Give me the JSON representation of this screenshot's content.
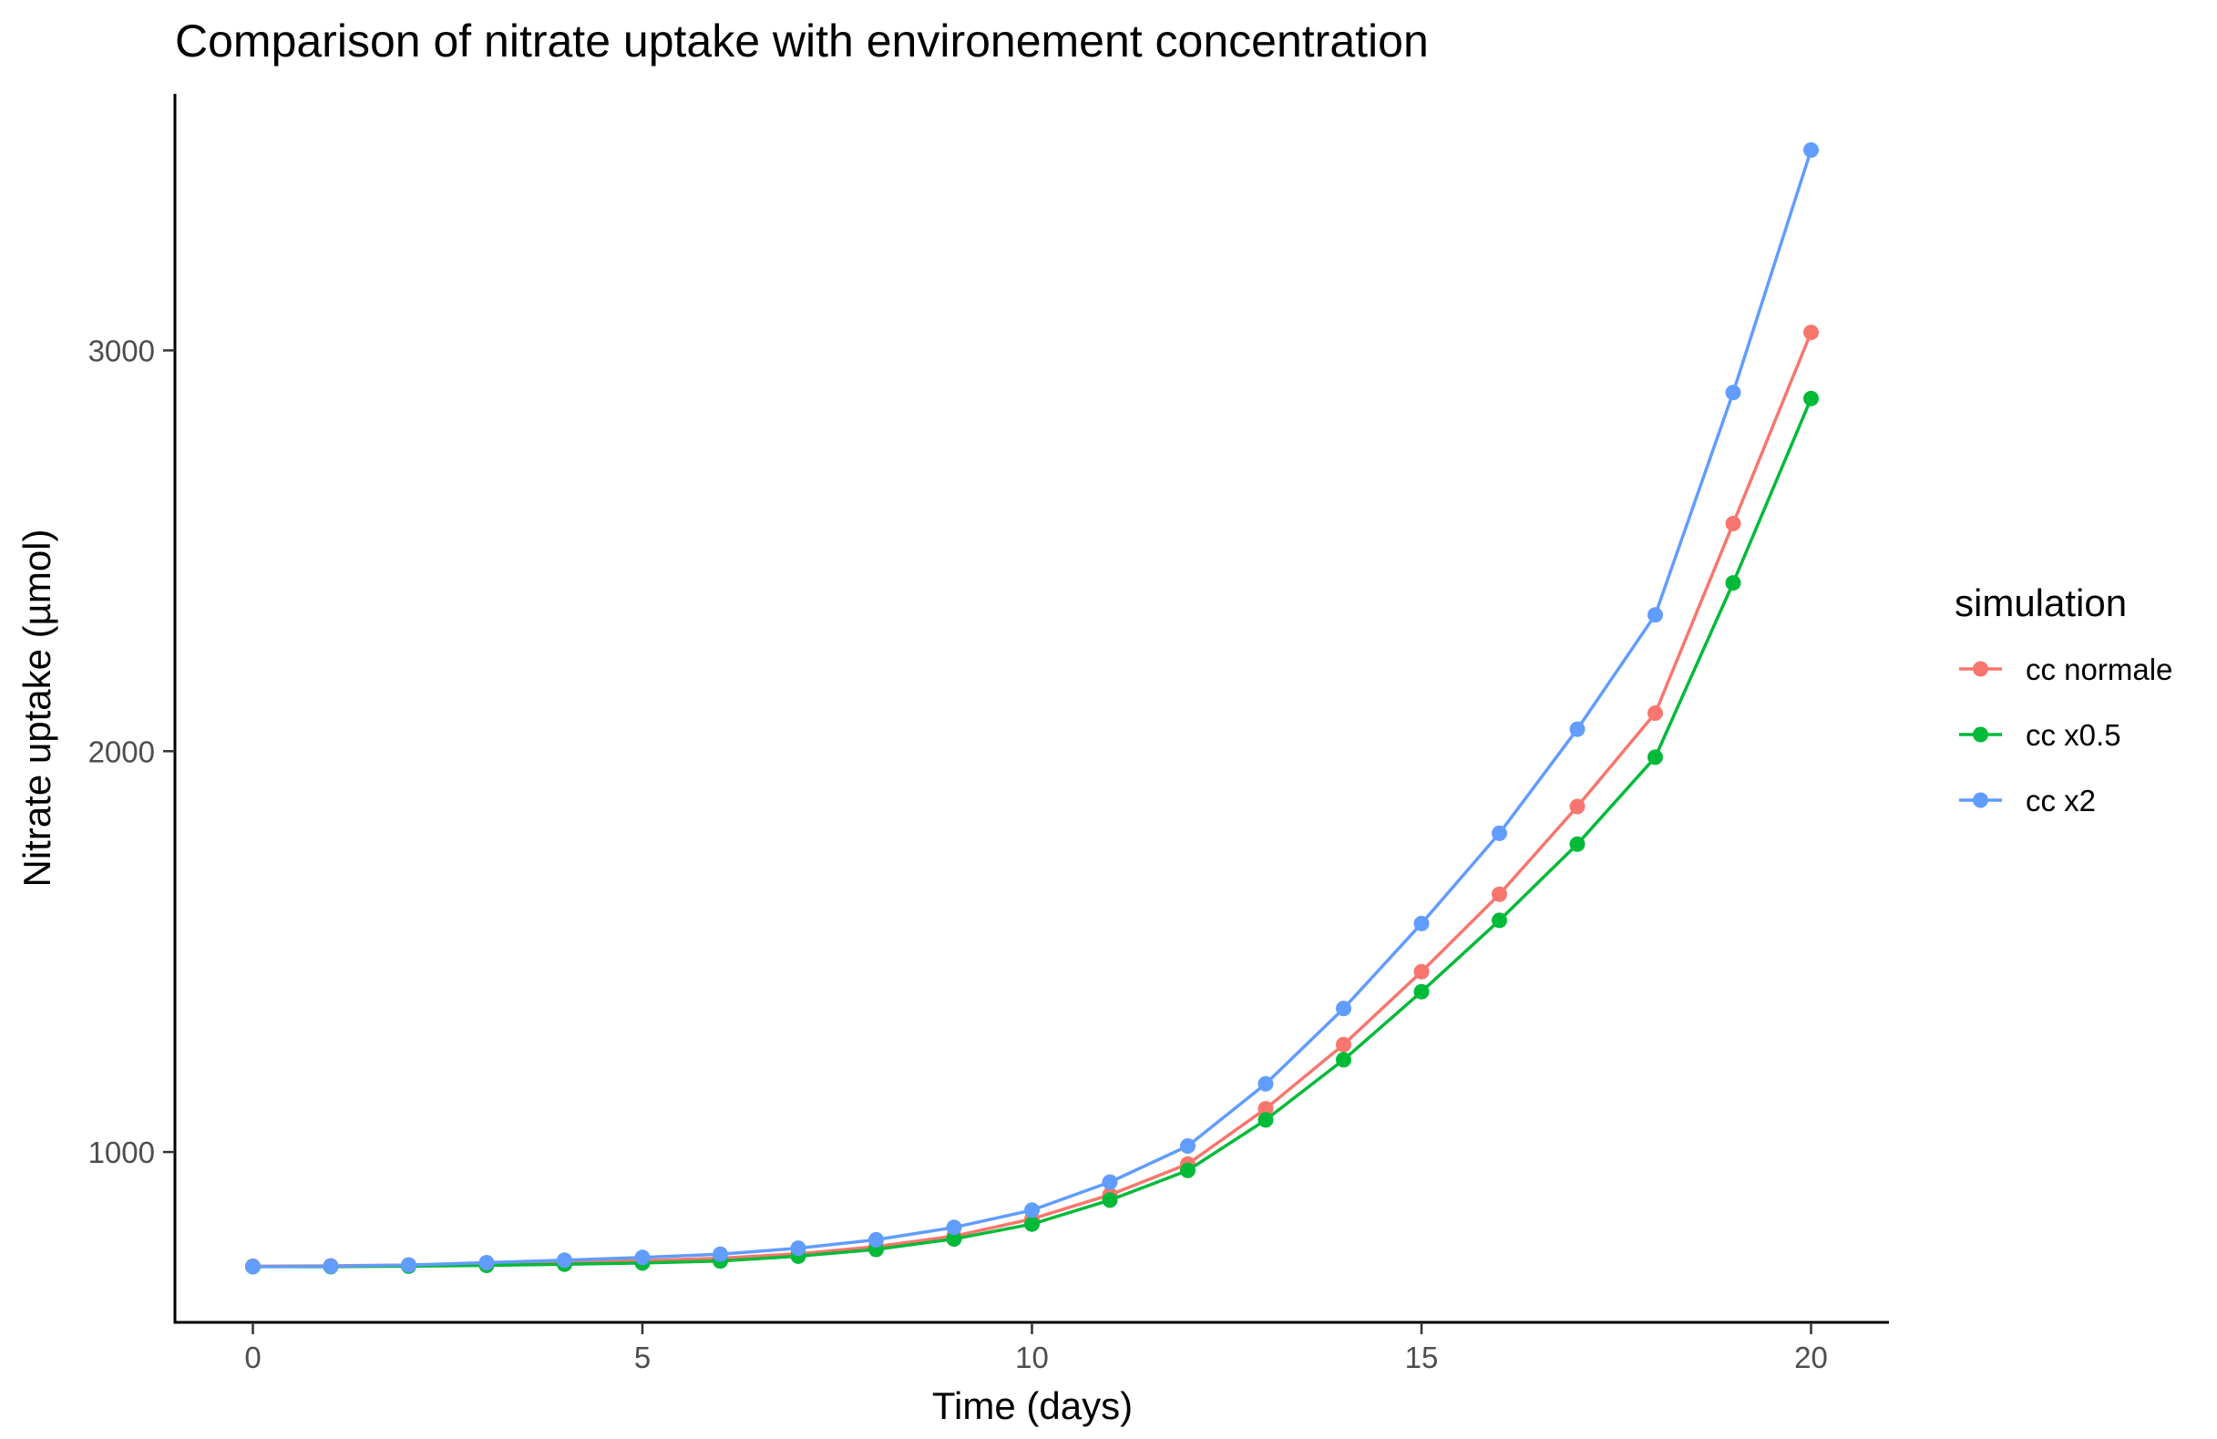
{
  "chart_data": {
    "type": "line",
    "title": "Comparison of nitrate uptake with environement concentration",
    "xlabel": "Time (days)",
    "ylabel": "Nitrate uptake (µmol)",
    "x": [
      0,
      1,
      2,
      3,
      4,
      5,
      6,
      7,
      8,
      9,
      10,
      11,
      12,
      13,
      14,
      15,
      16,
      17,
      18,
      19,
      20
    ],
    "xlim": [
      -1,
      21
    ],
    "ylim": [
      575,
      3640
    ],
    "xticks": [
      0,
      5,
      10,
      15,
      20
    ],
    "xtick_labels": [
      "0",
      "5",
      "10",
      "15",
      "20"
    ],
    "yticks": [
      1000,
      2000,
      3000
    ],
    "ytick_labels": [
      "1000",
      "2000",
      "3000"
    ],
    "grid": false,
    "legend": {
      "title": "simulation",
      "position": "right"
    },
    "series": [
      {
        "name": "cc normale",
        "color": "#F8766D",
        "values": [
          715,
          716,
          718,
          721,
          725,
          729,
          735,
          746,
          764,
          790,
          833,
          893,
          970,
          1108,
          1268,
          1450,
          1643,
          1862,
          2095,
          2568,
          3045
        ]
      },
      {
        "name": "cc x0.5",
        "color": "#00BA38",
        "values": [
          714,
          714,
          715,
          717,
          720,
          723,
          728,
          740,
          757,
          783,
          820,
          880,
          954,
          1080,
          1230,
          1400,
          1578,
          1768,
          1985,
          2420,
          2880
        ]
      },
      {
        "name": "cc x2",
        "color": "#619CFF",
        "values": [
          714,
          715,
          718,
          724,
          730,
          737,
          745,
          760,
          781,
          812,
          855,
          925,
          1015,
          1170,
          1358,
          1570,
          1795,
          2055,
          2340,
          2895,
          3500
        ]
      }
    ]
  }
}
